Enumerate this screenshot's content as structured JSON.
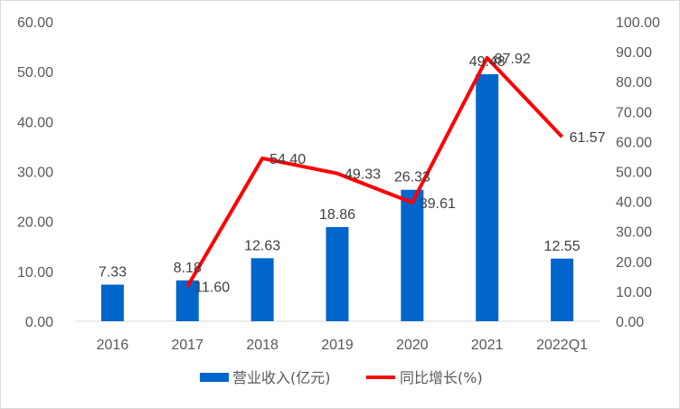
{
  "chart_data": {
    "type": "bar+line",
    "categories": [
      "2016",
      "2017",
      "2018",
      "2019",
      "2020",
      "2021",
      "2022Q1"
    ],
    "series": [
      {
        "name": "营业收入(亿元)",
        "type": "bar",
        "axis": "left",
        "color": "#0066CC",
        "values": [
          7.33,
          8.18,
          12.63,
          18.86,
          26.33,
          49.48,
          12.55
        ],
        "labels": [
          "7.33",
          "8.18",
          "12.63",
          "18.86",
          "26.33",
          "49.48",
          "12.55"
        ]
      },
      {
        "name": "同比增长(%)",
        "type": "line",
        "axis": "right",
        "color": "#FF0000",
        "values": [
          null,
          11.6,
          54.4,
          49.33,
          39.61,
          87.92,
          61.57
        ],
        "labels": [
          "",
          "11.60",
          "54.40",
          "49.33",
          "39.61",
          "87.92",
          "61.57"
        ]
      }
    ],
    "y_left": {
      "min": 0,
      "max": 60,
      "ticks": [
        "0.00",
        "10.00",
        "20.00",
        "30.00",
        "40.00",
        "50.00",
        "60.00"
      ]
    },
    "y_right": {
      "min": 0,
      "max": 100,
      "ticks": [
        "0.00",
        "10.00",
        "20.00",
        "30.00",
        "40.00",
        "50.00",
        "60.00",
        "70.00",
        "80.00",
        "90.00",
        "100.00"
      ]
    },
    "grid": false,
    "legend": "bottom"
  }
}
